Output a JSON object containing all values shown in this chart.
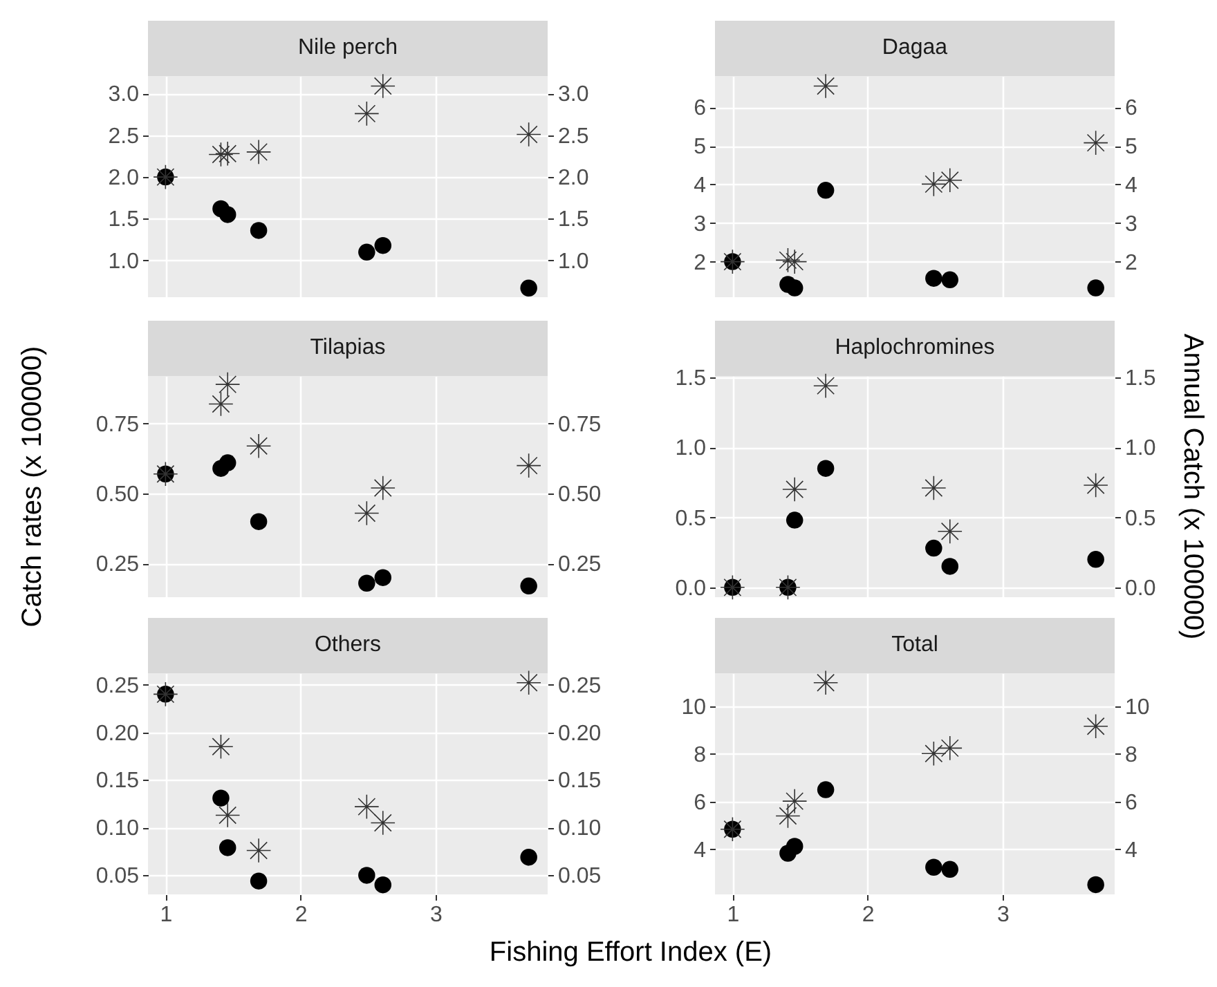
{
  "chart_data": [
    {
      "type": "scatter",
      "title": "Nile perch",
      "x": [
        1,
        1.41,
        1.46,
        1.69,
        2.49,
        2.61,
        3.69
      ],
      "xlim": [
        0.87,
        3.83
      ],
      "xticks": [
        1,
        2,
        3
      ],
      "ylim": [
        0.56,
        3.21
      ],
      "yticks": [
        {
          "value": 1,
          "label": "1.0"
        },
        1.5,
        {
          "value": 2,
          "label": "2.0"
        },
        2.5,
        {
          "value": 3,
          "label": "3.0"
        }
      ],
      "y2lim": [
        0.56,
        3.21
      ],
      "y2ticks": [
        {
          "value": 1,
          "label": "1.0"
        },
        1.5,
        {
          "value": 2,
          "label": "2.0"
        },
        2.5,
        {
          "value": 3,
          "label": "3.0"
        }
      ],
      "grid": true,
      "tick_labels": "y",
      "series": [
        {
          "color": "#000000",
          "marker": "circle",
          "values": [
            2.0,
            1.62,
            1.55,
            1.36,
            1.1,
            1.18,
            0.67
          ]
        },
        {
          "color": "#333333",
          "marker": "cross",
          "axis": "y2",
          "values": [
            2.0,
            2.27,
            2.28,
            2.3,
            2.76,
            3.09,
            2.51
          ]
        }
      ]
    },
    {
      "type": "scatter",
      "title": "Dagaa",
      "x": [
        1,
        1.41,
        1.46,
        1.69,
        2.49,
        2.61,
        3.69
      ],
      "xlim": [
        0.87,
        3.83
      ],
      "xticks": [
        1,
        2,
        3
      ],
      "ylim": [
        1.08,
        6.81
      ],
      "yticks": [
        2,
        3,
        4,
        5,
        6
      ],
      "y2lim": [
        1.08,
        6.81
      ],
      "y2ticks": [
        2,
        3,
        4,
        5,
        6
      ],
      "grid": true,
      "tick_labels": "y",
      "series": [
        {
          "color": "#000000",
          "marker": "circle",
          "values": [
            2.0,
            1.41,
            1.32,
            3.85,
            1.57,
            1.53,
            1.32
          ]
        },
        {
          "color": "#333333",
          "marker": "cross",
          "axis": "y2",
          "values": [
            2.0,
            2.04,
            2.0,
            6.55,
            4.01,
            4.11,
            5.08
          ]
        }
      ]
    },
    {
      "type": "scatter",
      "title": "Tilapias",
      "ylabel": "Catch rates (x 100000)",
      "x": [
        1,
        1.41,
        1.46,
        1.69,
        2.49,
        2.61,
        3.69
      ],
      "xlim": [
        0.87,
        3.83
      ],
      "xticks": [
        1,
        2,
        3
      ],
      "ylim": [
        0.13,
        0.92
      ],
      "yticks": [
        {
          "value": 0.25,
          "label": "0.25"
        },
        {
          "value": 0.5,
          "label": "0.50"
        },
        {
          "value": 0.75,
          "label": "0.75"
        }
      ],
      "y2lim": [
        0.13,
        0.92
      ],
      "y2ticks": [
        {
          "value": 0.25,
          "label": "0.25"
        },
        {
          "value": 0.5,
          "label": "0.50"
        },
        {
          "value": 0.75,
          "label": "0.75"
        }
      ],
      "grid": true,
      "tick_labels": "y",
      "series": [
        {
          "color": "#000000",
          "marker": "circle",
          "values": [
            0.57,
            0.59,
            0.61,
            0.4,
            0.18,
            0.2,
            0.17
          ]
        },
        {
          "color": "#333333",
          "marker": "cross",
          "axis": "y2",
          "values": [
            0.57,
            0.82,
            0.89,
            0.67,
            0.43,
            0.52,
            0.6
          ]
        }
      ]
    },
    {
      "type": "scatter",
      "title": "Haplochromines",
      "y2label": "Annual Catch (x 100000)",
      "x": [
        1,
        1.41,
        1.46,
        1.69,
        2.49,
        2.61,
        3.69
      ],
      "xlim": [
        0.87,
        3.83
      ],
      "xticks": [
        1,
        2,
        3
      ],
      "ylim": [
        -0.07,
        1.51
      ],
      "yticks": [
        {
          "value": 0,
          "label": "0.0"
        },
        {
          "value": 0.5,
          "label": "0.5"
        },
        {
          "value": 1,
          "label": "1.0"
        },
        {
          "value": 1.5,
          "label": "1.5"
        }
      ],
      "y2lim": [
        -0.07,
        1.51
      ],
      "y2ticks": [
        {
          "value": 0,
          "label": "0.0"
        },
        {
          "value": 0.5,
          "label": "0.5"
        },
        {
          "value": 1,
          "label": "1.0"
        },
        {
          "value": 1.5,
          "label": "1.5"
        }
      ],
      "grid": true,
      "tick_labels": "y",
      "series": [
        {
          "color": "#000000",
          "marker": "circle",
          "values": [
            0.0,
            0.0,
            0.48,
            0.85,
            0.28,
            0.15,
            0.2
          ]
        },
        {
          "color": "#333333",
          "marker": "cross",
          "axis": "y2",
          "values": [
            0.0,
            0.0,
            0.7,
            1.44,
            0.71,
            0.4,
            0.73
          ]
        }
      ]
    },
    {
      "type": "scatter",
      "title": "Others",
      "xlabel": "Fishing Effort Index (E)",
      "x": [
        1,
        1.41,
        1.46,
        1.69,
        2.49,
        2.61,
        3.69
      ],
      "xlim": [
        0.87,
        3.83
      ],
      "xticks": [
        1,
        2,
        3
      ],
      "ylim": [
        0.03,
        0.262
      ],
      "yticks": [
        0.05,
        {
          "value": 0.1,
          "label": "0.10"
        },
        0.15,
        {
          "value": 0.2,
          "label": "0.20"
        },
        0.25
      ],
      "y2lim": [
        0.03,
        0.262
      ],
      "y2ticks": [
        0.05,
        {
          "value": 0.1,
          "label": "0.10"
        },
        0.15,
        {
          "value": 0.2,
          "label": "0.20"
        },
        0.25
      ],
      "grid": true,
      "series": [
        {
          "color": "#000000",
          "marker": "circle",
          "values": [
            0.24,
            0.131,
            0.079,
            0.044,
            0.05,
            0.04,
            0.069
          ]
        },
        {
          "color": "#333333",
          "marker": "cross",
          "axis": "y2",
          "values": [
            0.24,
            0.185,
            0.113,
            0.076,
            0.122,
            0.105,
            0.252
          ]
        }
      ]
    },
    {
      "type": "scatter",
      "title": "Total",
      "x": [
        1,
        1.41,
        1.46,
        1.69,
        2.49,
        2.61,
        3.69
      ],
      "xlim": [
        0.87,
        3.83
      ],
      "xticks": [
        1,
        2,
        3
      ],
      "ylim": [
        2.1,
        11.4
      ],
      "yticks": [
        4,
        6,
        8,
        10
      ],
      "y2lim": [
        2.1,
        11.4
      ],
      "y2ticks": [
        4,
        6,
        8,
        10
      ],
      "grid": true,
      "series": [
        {
          "color": "#000000",
          "marker": "circle",
          "values": [
            4.84,
            3.83,
            4.12,
            6.5,
            3.24,
            3.15,
            2.51
          ]
        },
        {
          "color": "#333333",
          "marker": "cross",
          "axis": "y2",
          "values": [
            4.84,
            5.4,
            6.02,
            11.0,
            8.02,
            8.25,
            9.17
          ]
        }
      ]
    }
  ]
}
